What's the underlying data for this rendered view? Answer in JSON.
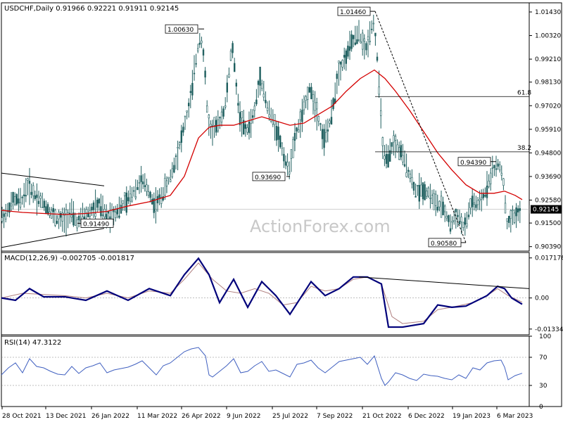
{
  "header": {
    "symbol_line": "USDCHF,Daily  0.91966 0.92221 0.91911 0.92145",
    "macd_line": "MACD(12,26,9) -0.002705 -0.001817",
    "rsi_line": "RSI(14) 47.3122"
  },
  "watermark": "ActionForex.com",
  "colors": {
    "candle": "#1f5f5f",
    "ma": "#d40000",
    "macd": "#00007a",
    "signal": "#b08080",
    "rsi": "#4060c0",
    "grid": "#808080",
    "trend": "#000000"
  },
  "chart_data": [
    {
      "type": "candlestick",
      "title": "USDCHF,Daily",
      "ohlc_last": {
        "open": 0.91966,
        "high": 0.92221,
        "low": 0.91911,
        "close": 0.92145
      },
      "y_ticks": [
        "1.01430",
        "1.00320",
        "0.99210",
        "0.98130",
        "0.97020",
        "0.95910",
        "0.94800",
        "0.93690",
        "0.92580",
        "0.92145",
        "0.91500",
        "0.90390"
      ],
      "ylim": [
        0.9018,
        1.0186
      ],
      "x_tick_labels": [
        "28 Oct 2021",
        "13 Dec 2021",
        "26 Jan 2022",
        "11 Mar 2022",
        "26 Apr 2022",
        "9 Jun 2022",
        "25 Jul 2022",
        "7 Sep 2022",
        "21 Oct 2022",
        "6 Dec 2022",
        "19 Jan 2023",
        "6 Mar 2023"
      ],
      "current_price_label": "0.92145",
      "annotations": [
        {
          "text": "1.00630",
          "price": 1.0063
        },
        {
          "text": "0.93690",
          "price": 0.9369
        },
        {
          "text": "1.01460",
          "price": 1.0146
        },
        {
          "text": "0.94390",
          "price": 0.9439
        },
        {
          "text": "0.90580",
          "price": 0.9058
        },
        {
          "text": "0.91490",
          "price": 0.9149
        }
      ],
      "fib_levels": [
        {
          "label": "61.8",
          "price": 0.9745
        },
        {
          "label": "38.2",
          "price": 0.9485
        }
      ],
      "close_path": [
        [
          0,
          0.917
        ],
        [
          10,
          0.92
        ],
        [
          20,
          0.926
        ],
        [
          30,
          0.925
        ],
        [
          40,
          0.933
        ],
        [
          50,
          0.928
        ],
        [
          60,
          0.925
        ],
        [
          70,
          0.921
        ],
        [
          80,
          0.917
        ],
        [
          90,
          0.916
        ],
        [
          100,
          0.92
        ],
        [
          110,
          0.915
        ],
        [
          120,
          0.919
        ],
        [
          130,
          0.921
        ],
        [
          140,
          0.924
        ],
        [
          150,
          0.918
        ],
        [
          160,
          0.919
        ],
        [
          170,
          0.922
        ],
        [
          180,
          0.925
        ],
        [
          190,
          0.93
        ],
        [
          200,
          0.935
        ],
        [
          210,
          0.931
        ],
        [
          220,
          0.923
        ],
        [
          230,
          0.928
        ],
        [
          240,
          0.935
        ],
        [
          250,
          0.945
        ],
        [
          260,
          0.958
        ],
        [
          270,
          0.972
        ],
        [
          280,
          0.995
        ],
        [
          285,
          1.004
        ],
        [
          290,
          0.992
        ],
        [
          295,
          0.965
        ],
        [
          300,
          0.958
        ],
        [
          310,
          0.961
        ],
        [
          320,
          0.97
        ],
        [
          330,
          0.999
        ],
        [
          340,
          0.966
        ],
        [
          350,
          0.958
        ],
        [
          360,
          0.965
        ],
        [
          370,
          0.984
        ],
        [
          380,
          0.969
        ],
        [
          390,
          0.962
        ],
        [
          400,
          0.951
        ],
        [
          410,
          0.939
        ],
        [
          420,
          0.956
        ],
        [
          430,
          0.966
        ],
        [
          440,
          0.979
        ],
        [
          450,
          0.968
        ],
        [
          460,
          0.954
        ],
        [
          470,
          0.963
        ],
        [
          480,
          0.985
        ],
        [
          490,
          0.992
        ],
        [
          500,
          1.0
        ],
        [
          510,
          1.004
        ],
        [
          520,
          0.996
        ],
        [
          530,
          1.011
        ],
        [
          535,
          0.998
        ],
        [
          540,
          0.972
        ],
        [
          545,
          0.946
        ],
        [
          550,
          0.944
        ],
        [
          560,
          0.953
        ],
        [
          570,
          0.948
        ],
        [
          580,
          0.94
        ],
        [
          590,
          0.93
        ],
        [
          600,
          0.931
        ],
        [
          610,
          0.929
        ],
        [
          620,
          0.924
        ],
        [
          630,
          0.922
        ],
        [
          640,
          0.914
        ],
        [
          650,
          0.919
        ],
        [
          660,
          0.912
        ],
        [
          670,
          0.925
        ],
        [
          680,
          0.923
        ],
        [
          690,
          0.93
        ],
        [
          700,
          0.94
        ],
        [
          710,
          0.942
        ],
        [
          715,
          0.936
        ],
        [
          720,
          0.914
        ],
        [
          730,
          0.918
        ],
        [
          740,
          0.921
        ]
      ],
      "ma_path": [
        [
          0,
          0.921
        ],
        [
          30,
          0.92
        ],
        [
          60,
          0.9195
        ],
        [
          90,
          0.919
        ],
        [
          120,
          0.9195
        ],
        [
          150,
          0.9205
        ],
        [
          180,
          0.923
        ],
        [
          210,
          0.925
        ],
        [
          240,
          0.928
        ],
        [
          260,
          0.937
        ],
        [
          280,
          0.955
        ],
        [
          295,
          0.96
        ],
        [
          310,
          0.961
        ],
        [
          330,
          0.961
        ],
        [
          350,
          0.963
        ],
        [
          370,
          0.965
        ],
        [
          390,
          0.963
        ],
        [
          410,
          0.961
        ],
        [
          430,
          0.962
        ],
        [
          450,
          0.966
        ],
        [
          470,
          0.97
        ],
        [
          490,
          0.977
        ],
        [
          510,
          0.983
        ],
        [
          530,
          0.987
        ],
        [
          545,
          0.983
        ],
        [
          560,
          0.977
        ],
        [
          580,
          0.968
        ],
        [
          600,
          0.958
        ],
        [
          620,
          0.948
        ],
        [
          640,
          0.94
        ],
        [
          660,
          0.933
        ],
        [
          680,
          0.929
        ],
        [
          700,
          0.929
        ],
        [
          715,
          0.93
        ],
        [
          730,
          0.928
        ],
        [
          740,
          0.926
        ]
      ]
    },
    {
      "type": "line",
      "title": "MACD(12,26,9)",
      "values_text": "-0.002705 -0.001817",
      "y_ticks": [
        "0.017176",
        "0.00",
        "-0.01334"
      ],
      "ylim": [
        -0.0158,
        0.0195
      ],
      "macd_path": [
        [
          0,
          0
        ],
        [
          20,
          -0.001
        ],
        [
          40,
          0.004
        ],
        [
          60,
          0.0005
        ],
        [
          90,
          0.0005
        ],
        [
          120,
          -0.001
        ],
        [
          150,
          0.003
        ],
        [
          180,
          -0.001
        ],
        [
          210,
          0.004
        ],
        [
          240,
          0.001
        ],
        [
          260,
          0.01
        ],
        [
          280,
          0.017
        ],
        [
          295,
          0.01
        ],
        [
          310,
          -0.002
        ],
        [
          330,
          0.008
        ],
        [
          350,
          -0.004
        ],
        [
          370,
          0.007
        ],
        [
          390,
          0.001
        ],
        [
          410,
          -0.007
        ],
        [
          440,
          0.007
        ],
        [
          460,
          0.001
        ],
        [
          480,
          0.004
        ],
        [
          500,
          0.009
        ],
        [
          520,
          0.009
        ],
        [
          540,
          0.006
        ],
        [
          550,
          -0.0125
        ],
        [
          570,
          -0.0125
        ],
        [
          600,
          -0.011
        ],
        [
          620,
          -0.003
        ],
        [
          640,
          -0.004
        ],
        [
          660,
          -0.0035
        ],
        [
          690,
          0.001
        ],
        [
          705,
          0.005
        ],
        [
          715,
          0.004
        ],
        [
          725,
          0.0
        ],
        [
          740,
          -0.0027
        ]
      ],
      "signal_path": [
        [
          0,
          0.0
        ],
        [
          30,
          0.002
        ],
        [
          60,
          0.0015
        ],
        [
          90,
          0.001
        ],
        [
          120,
          0.0
        ],
        [
          150,
          0.002
        ],
        [
          180,
          0.0
        ],
        [
          210,
          0.003
        ],
        [
          240,
          0.002
        ],
        [
          260,
          0.008
        ],
        [
          280,
          0.015
        ],
        [
          300,
          0.008
        ],
        [
          320,
          0.003
        ],
        [
          340,
          0.002
        ],
        [
          360,
          0.004
        ],
        [
          380,
          0.002
        ],
        [
          400,
          -0.003
        ],
        [
          420,
          -0.002
        ],
        [
          440,
          0.005
        ],
        [
          460,
          0.003
        ],
        [
          480,
          0.004
        ],
        [
          500,
          0.008
        ],
        [
          520,
          0.009
        ],
        [
          540,
          0.006
        ],
        [
          555,
          -0.008
        ],
        [
          570,
          -0.011
        ],
        [
          600,
          -0.01
        ],
        [
          620,
          -0.005
        ],
        [
          640,
          -0.004
        ],
        [
          670,
          -0.002
        ],
        [
          690,
          0.001
        ],
        [
          705,
          0.004
        ],
        [
          720,
          0.001
        ],
        [
          740,
          -0.0018
        ]
      ],
      "trendline": [
        [
          510,
          0.009
        ],
        [
          752,
          0.004
        ]
      ]
    },
    {
      "type": "line",
      "title": "RSI(14)",
      "value_text": "47.3122",
      "y_ticks": [
        "100",
        "70",
        "30",
        "0"
      ],
      "ylim": [
        0,
        100
      ],
      "rsi_path": [
        [
          0,
          45
        ],
        [
          10,
          55
        ],
        [
          20,
          62
        ],
        [
          30,
          48
        ],
        [
          40,
          68
        ],
        [
          50,
          57
        ],
        [
          60,
          55
        ],
        [
          70,
          50
        ],
        [
          80,
          46
        ],
        [
          90,
          45
        ],
        [
          100,
          57
        ],
        [
          110,
          47
        ],
        [
          120,
          55
        ],
        [
          130,
          58
        ],
        [
          140,
          62
        ],
        [
          150,
          48
        ],
        [
          160,
          52
        ],
        [
          170,
          54
        ],
        [
          180,
          56
        ],
        [
          190,
          60
        ],
        [
          200,
          65
        ],
        [
          210,
          55
        ],
        [
          220,
          45
        ],
        [
          230,
          58
        ],
        [
          240,
          62
        ],
        [
          250,
          70
        ],
        [
          260,
          78
        ],
        [
          270,
          82
        ],
        [
          280,
          84
        ],
        [
          290,
          72
        ],
        [
          295,
          45
        ],
        [
          300,
          42
        ],
        [
          310,
          50
        ],
        [
          320,
          58
        ],
        [
          330,
          68
        ],
        [
          340,
          48
        ],
        [
          350,
          50
        ],
        [
          360,
          58
        ],
        [
          370,
          64
        ],
        [
          380,
          50
        ],
        [
          390,
          52
        ],
        [
          400,
          47
        ],
        [
          410,
          42
        ],
        [
          420,
          60
        ],
        [
          430,
          62
        ],
        [
          440,
          66
        ],
        [
          450,
          55
        ],
        [
          460,
          48
        ],
        [
          470,
          56
        ],
        [
          480,
          64
        ],
        [
          490,
          66
        ],
        [
          500,
          68
        ],
        [
          510,
          70
        ],
        [
          520,
          60
        ],
        [
          530,
          72
        ],
        [
          540,
          40
        ],
        [
          545,
          30
        ],
        [
          550,
          35
        ],
        [
          560,
          48
        ],
        [
          570,
          45
        ],
        [
          580,
          40
        ],
        [
          590,
          37
        ],
        [
          600,
          46
        ],
        [
          610,
          44
        ],
        [
          620,
          43
        ],
        [
          630,
          40
        ],
        [
          640,
          38
        ],
        [
          650,
          45
        ],
        [
          660,
          40
        ],
        [
          670,
          55
        ],
        [
          680,
          52
        ],
        [
          690,
          62
        ],
        [
          700,
          65
        ],
        [
          710,
          66
        ],
        [
          715,
          56
        ],
        [
          720,
          38
        ],
        [
          730,
          44
        ],
        [
          740,
          47.3
        ]
      ]
    }
  ]
}
